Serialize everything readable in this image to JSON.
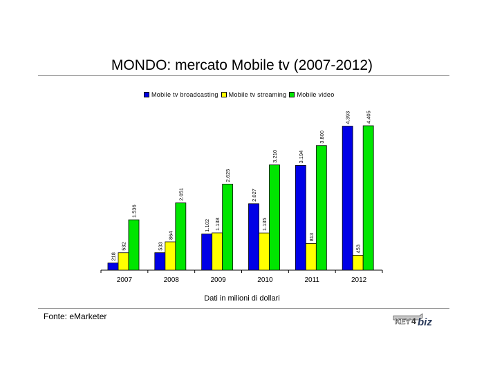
{
  "page": {
    "title": "MONDO: mercato Mobile tv (2007-2012)",
    "unit_note": "Dati in milioni di dollari",
    "source": "Fonte: eMarketer",
    "logo_text": "KEY4biz"
  },
  "colors": {
    "broadcasting": "#0000e6",
    "streaming": "#ffff00",
    "video": "#00e600"
  },
  "chart_data": {
    "type": "bar",
    "title": "MONDO: mercato Mobile tv (2007-2012)",
    "xlabel": "",
    "ylabel": "",
    "categories": [
      "2007",
      "2008",
      "2009",
      "2010",
      "2011",
      "2012"
    ],
    "ylim": [
      0,
      4800
    ],
    "grid": false,
    "legend_position": "top",
    "series": [
      {
        "name": "Mobile tv broadcasting",
        "color": "#0000e6",
        "values": [
          218,
          533,
          1102,
          2027,
          3194,
          4393
        ],
        "labels": [
          "218",
          "533",
          "1.102",
          "2.027",
          "3.194",
          "4.393"
        ]
      },
      {
        "name": "Mobile tv streaming",
        "color": "#ffff00",
        "values": [
          532,
          864,
          1138,
          1135,
          813,
          453
        ],
        "labels": [
          "532",
          "864",
          "1.138",
          "1.135",
          "813",
          "453"
        ]
      },
      {
        "name": "Mobile video",
        "color": "#00e600",
        "values": [
          1536,
          2051,
          2625,
          3210,
          3800,
          4405
        ],
        "labels": [
          "1.536",
          "2.051",
          "2.625",
          "3.210",
          "3.800",
          "4.405"
        ]
      }
    ]
  }
}
